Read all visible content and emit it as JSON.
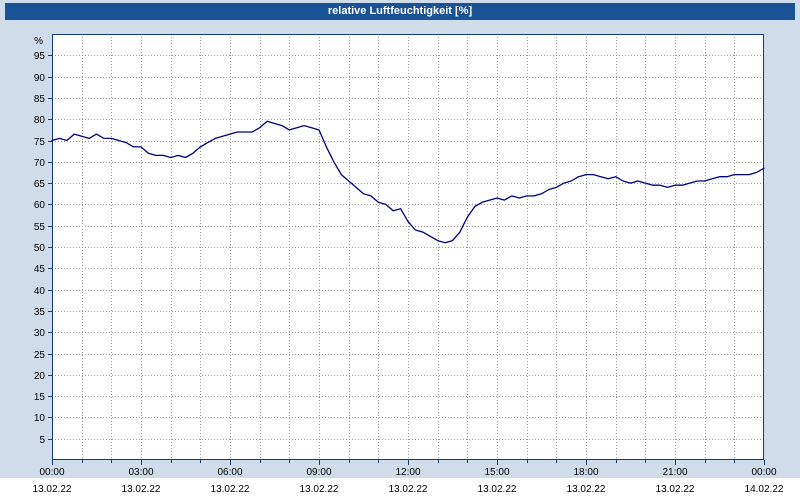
{
  "window": {
    "title": "relative Luftfeuchtigkeit [%]"
  },
  "colors": {
    "titlebar_bg": "#1a5296",
    "titlebar_text": "#ffffff",
    "page_bg": "#cfdce9",
    "plot_bg": "#ffffff",
    "grid": "#999999",
    "frame": "#123a7a",
    "line": "#00007f",
    "tick_text": "#000000",
    "date_strip_bg": "#ffffff"
  },
  "chart_data": {
    "type": "line",
    "title": "relative Luftfeuchtigkeit [%]",
    "xlabel": "",
    "ylabel": "%",
    "ylim": [
      0,
      100
    ],
    "grid": true,
    "legend": "none",
    "y_ticks": [
      5,
      10,
      15,
      20,
      25,
      30,
      35,
      40,
      45,
      50,
      55,
      60,
      65,
      70,
      75,
      80,
      85,
      90,
      95
    ],
    "x_hours_range": [
      0,
      24
    ],
    "x_minor_grid_step_hours": 1,
    "x_tick_hours": [
      0,
      3,
      6,
      9,
      12,
      15,
      18,
      21,
      24
    ],
    "x_tick_labels": [
      "00:00",
      "03:00",
      "06:00",
      "09:00",
      "12:00",
      "15:00",
      "18:00",
      "21:00",
      "00:00"
    ],
    "x_date_labels": [
      "13.02.22",
      "13.02.22",
      "13.02.22",
      "13.02.22",
      "13.02.22",
      "13.02.22",
      "13.02.22",
      "13.02.22",
      "14.02.22"
    ],
    "series": [
      {
        "name": "relative Luftfeuchtigkeit",
        "color": "#00007f",
        "x_start_hours": 0,
        "x_step_hours": 0.25,
        "values": [
          75,
          75.5,
          75,
          76.5,
          76,
          75.5,
          76.5,
          75.5,
          75.5,
          75,
          74.5,
          73.5,
          73.5,
          72,
          71.5,
          71.5,
          71,
          71.5,
          71,
          72,
          73.5,
          74.5,
          75.5,
          76,
          76.5,
          77,
          77,
          77,
          78,
          79.5,
          79,
          78.5,
          77.5,
          78,
          78.5,
          78,
          77.5,
          73.5,
          70,
          67,
          65.5,
          64,
          62.5,
          62,
          60.5,
          60,
          58.5,
          59,
          56,
          54,
          53.5,
          52.5,
          51.5,
          51,
          51.5,
          53.5,
          57,
          59.5,
          60.5,
          61,
          61.5,
          61,
          62,
          61.5,
          62,
          62,
          62.5,
          63.5,
          64,
          65,
          65.5,
          66.5,
          67,
          67,
          66.5,
          66,
          66.5,
          65.5,
          65,
          65.5,
          65,
          64.5,
          64.5,
          64,
          64.5,
          64.5,
          65,
          65.5,
          65.5,
          66,
          66.5,
          66.5,
          67,
          67,
          67,
          67.5,
          68.5
        ]
      }
    ]
  }
}
